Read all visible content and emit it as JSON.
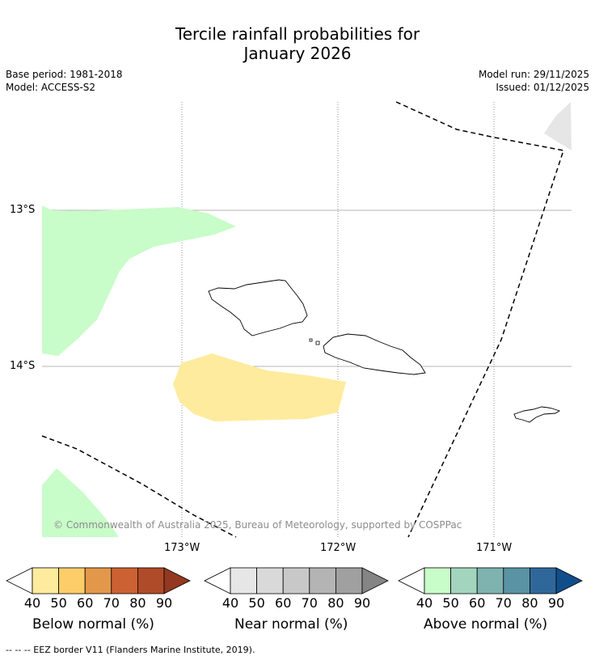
{
  "title": {
    "line1": "Tercile rainfall probabilities for",
    "line2": "January 2026"
  },
  "meta": {
    "base_period": "Base period: 1981-2018",
    "model": "Model: ACCESS-S2",
    "model_run": "Model run: 29/11/2025",
    "issued": "Issued: 01/12/2025"
  },
  "map": {
    "lat_labels": [
      "13°S",
      "14°S"
    ],
    "lon_labels": [
      "173°W",
      "172°W",
      "171°W"
    ],
    "copyright": "© Commonwealth of Australia 2025, Bureau of Meteorology, supported by COSPPac",
    "region_colors": {
      "above_40_50": "#c8fcc8",
      "below_40_50": "#ffeb9e",
      "near_40_50": "#e6e6e6"
    }
  },
  "colorbars": [
    {
      "name": "below",
      "label": "Below normal (%)",
      "ticks": [
        "40",
        "50",
        "60",
        "70",
        "80",
        "90"
      ],
      "colors": [
        "#ffeb9e",
        "#fdcd69",
        "#e3974a",
        "#cc6233",
        "#b04b29",
        "#943820"
      ]
    },
    {
      "name": "near",
      "label": "Near normal (%)",
      "ticks": [
        "40",
        "50",
        "60",
        "70",
        "80",
        "90"
      ],
      "colors": [
        "#e6e6e6",
        "#d9d9d9",
        "#c8c8c8",
        "#b4b4b4",
        "#a0a0a0",
        "#858585"
      ]
    },
    {
      "name": "above",
      "label": "Above normal (%)",
      "ticks": [
        "40",
        "50",
        "60",
        "70",
        "80",
        "90"
      ],
      "colors": [
        "#c8fcc8",
        "#a3d4bd",
        "#7eb3b0",
        "#5a93a3",
        "#30679a",
        "#104e8b"
      ]
    }
  ],
  "footer": "--  --  -- EEZ border V11 (Flanders Marine Institute, 2019)."
}
